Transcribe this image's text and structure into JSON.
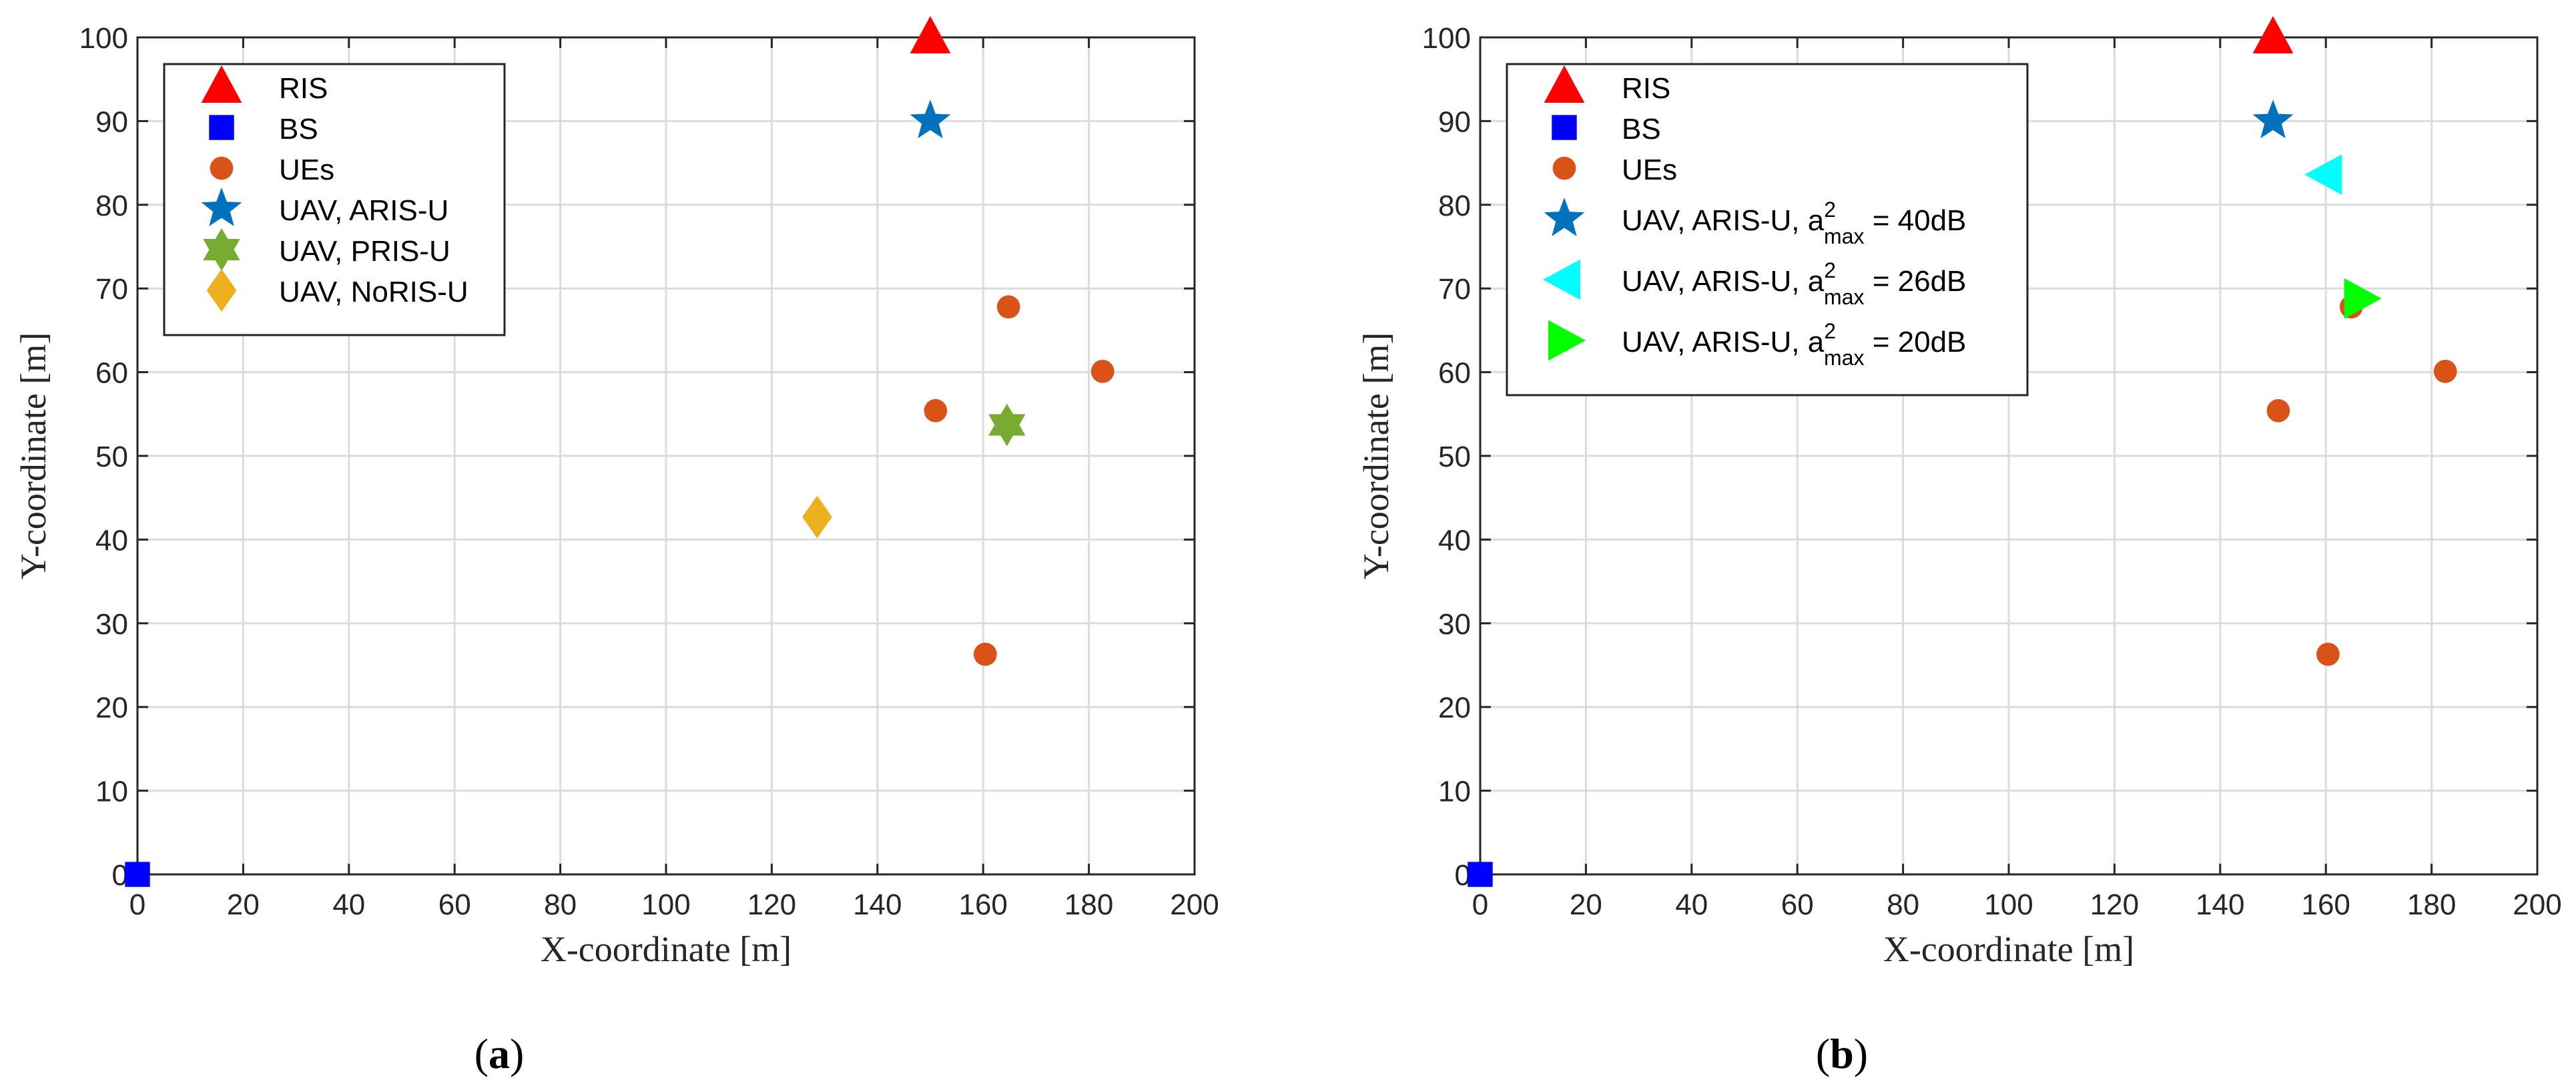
{
  "chart_data": [
    {
      "type": "scatter",
      "panel_label": "(a)",
      "xlabel": "X-coordinate [m]",
      "ylabel": "Y-coordinate [m]",
      "xlim": [
        0,
        200
      ],
      "ylim": [
        0,
        100
      ],
      "xticks": [
        0,
        20,
        40,
        60,
        80,
        100,
        120,
        140,
        160,
        180,
        200
      ],
      "yticks": [
        0,
        10,
        20,
        30,
        40,
        50,
        60,
        70,
        80,
        90,
        100
      ],
      "grid": true,
      "legend_position": "top-left",
      "series": [
        {
          "name": "RIS",
          "label": "RIS",
          "marker": "triangle-up",
          "color": "#ff0000",
          "points": [
            [
              150,
              100
            ]
          ]
        },
        {
          "name": "BS",
          "label": "BS",
          "marker": "square",
          "color": "#0000ff",
          "points": [
            [
              0,
              0
            ]
          ]
        },
        {
          "name": "UEs",
          "label": "UEs",
          "marker": "circle",
          "color": "#d95319",
          "points": [
            [
              164.8,
              67.8
            ],
            [
              182.6,
              60.1
            ],
            [
              151,
              55.4
            ],
            [
              160.4,
              26.3
            ]
          ]
        },
        {
          "name": "UAV, ARIS-U",
          "label": "UAV, ARIS-U",
          "marker": "pentagram",
          "color": "#0072bd",
          "points": [
            [
              150,
              90
            ]
          ]
        },
        {
          "name": "UAV, PRIS-U",
          "label": "UAV, PRIS-U",
          "marker": "hexagram",
          "color": "#77ac30",
          "points": [
            [
              164.5,
              53.7
            ]
          ]
        },
        {
          "name": "UAV, NoRIS-U",
          "label": "UAV, NoRIS-U",
          "marker": "diamond",
          "color": "#edb120",
          "points": [
            [
              128.6,
              42.7
            ]
          ]
        }
      ]
    },
    {
      "type": "scatter",
      "panel_label": "(b)",
      "xlabel": "X-coordinate [m]",
      "ylabel": "Y-coordinate [m]",
      "xlim": [
        0,
        200
      ],
      "ylim": [
        0,
        100
      ],
      "xticks": [
        0,
        20,
        40,
        60,
        80,
        100,
        120,
        140,
        160,
        180,
        200
      ],
      "yticks": [
        0,
        10,
        20,
        30,
        40,
        50,
        60,
        70,
        80,
        90,
        100
      ],
      "grid": true,
      "legend_position": "top-left",
      "series": [
        {
          "name": "RIS",
          "label": "RIS",
          "marker": "triangle-up",
          "color": "#ff0000",
          "points": [
            [
              150,
              100
            ]
          ]
        },
        {
          "name": "BS",
          "label": "BS",
          "marker": "square",
          "color": "#0000ff",
          "points": [
            [
              0,
              0
            ]
          ]
        },
        {
          "name": "UEs",
          "label": "UEs",
          "marker": "circle",
          "color": "#d95319",
          "points": [
            [
              164.8,
              67.8
            ],
            [
              182.6,
              60.1
            ],
            [
              151,
              55.4
            ],
            [
              160.4,
              26.3
            ]
          ]
        },
        {
          "name": "UAV, ARIS-U, a_max^2 = 40dB",
          "label": "UAV, ARIS-U, a",
          "sup": "2",
          "sub": "max",
          "tail": " = 40dB",
          "marker": "pentagram",
          "color": "#0072bd",
          "points": [
            [
              150,
              90
            ]
          ]
        },
        {
          "name": "UAV, ARIS-U, a_max^2 = 26dB",
          "label": "UAV, ARIS-U, a",
          "sup": "2",
          "sub": "max",
          "tail": " = 26dB",
          "marker": "triangle-left",
          "color": "#00ffff",
          "points": [
            [
              160,
              83.6
            ]
          ]
        },
        {
          "name": "UAV, ARIS-U, a_max^2 = 20dB",
          "label": "UAV, ARIS-U, a",
          "sup": "2",
          "sub": "max",
          "tail": " = 20dB",
          "marker": "triangle-right",
          "color": "#00ff00",
          "points": [
            [
              166.5,
              68.8
            ]
          ]
        }
      ]
    }
  ]
}
